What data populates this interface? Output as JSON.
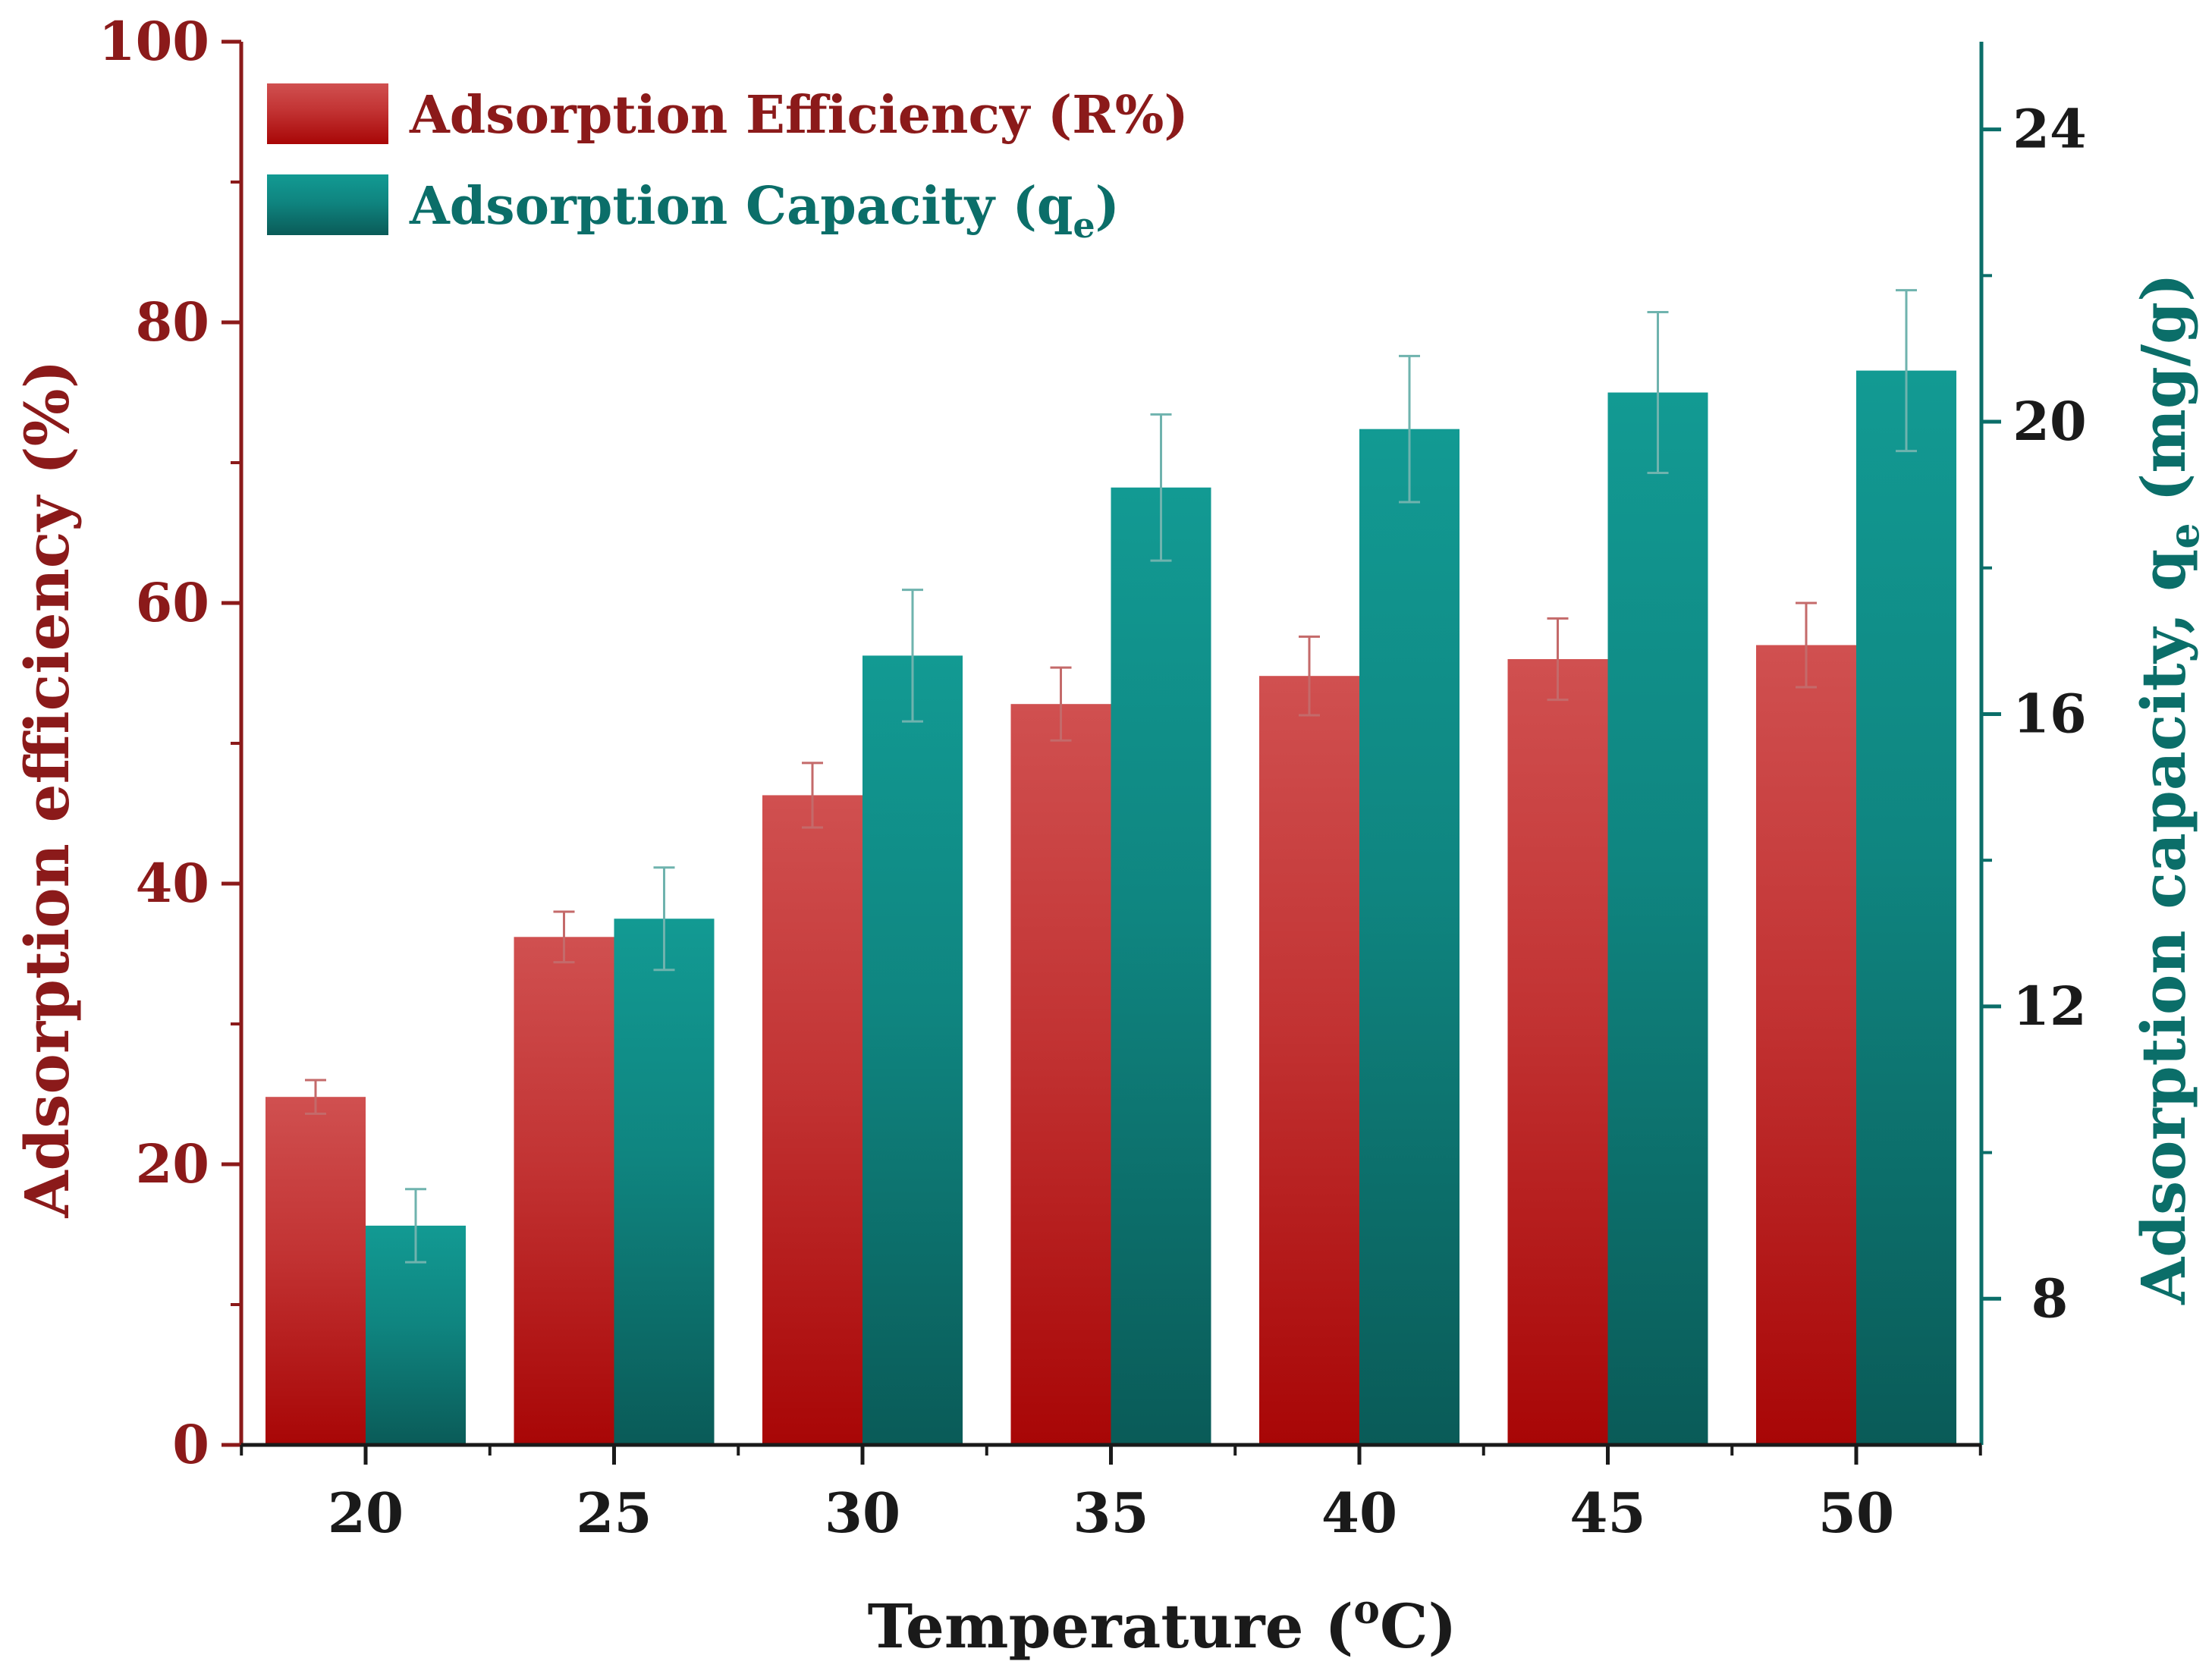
{
  "chart_data": {
    "type": "bar",
    "title": "",
    "xlabel": "Temperature (oC)",
    "xlabel_parts": {
      "pre": "Temperature (",
      "sup": "o",
      "post": "C)"
    },
    "ylabel_left": "Adsorption efficiency (%)",
    "ylabel_right": "Adsorption capacity, qe (mg/g)",
    "ylabel_right_parts": {
      "pre": "Adsorption capacity, q",
      "sub": "e",
      "post": " (mg/g)"
    },
    "categories": [
      "20",
      "25",
      "30",
      "35",
      "40",
      "45",
      "50"
    ],
    "ylim_left": [
      0,
      100
    ],
    "yticks_left": [
      0,
      20,
      40,
      60,
      80,
      100
    ],
    "ylim_right": [
      6,
      25.2
    ],
    "yticks_right": [
      8,
      12,
      16,
      20,
      24
    ],
    "legend_position": "top-left",
    "series": [
      {
        "name": "Adsorption Efficiency (R%)",
        "name_parts": {
          "pre": "Adsorption Efficiency (R%)",
          "sub": "",
          "post": ""
        },
        "axis": "left",
        "color": "#b01818",
        "values": [
          24.8,
          36.2,
          46.3,
          52.8,
          54.8,
          56.0,
          57.0
        ],
        "errors": [
          1.2,
          1.8,
          2.3,
          2.6,
          2.8,
          2.9,
          3.0
        ]
      },
      {
        "name": "Adsorption Capacity (qe)",
        "name_parts": {
          "pre": "Adsorption Capacity (q",
          "sub": "e",
          "post": ")"
        },
        "axis": "right",
        "color": "#0f7f79",
        "values": [
          9.0,
          13.2,
          16.8,
          19.1,
          19.9,
          20.4,
          20.7
        ],
        "errors": [
          0.5,
          0.7,
          0.9,
          1.0,
          1.0,
          1.1,
          1.1
        ]
      }
    ],
    "axis_colors": {
      "left": "#8b1a1a",
      "right": "#0b6e69",
      "x": "#1a1a1a"
    }
  }
}
